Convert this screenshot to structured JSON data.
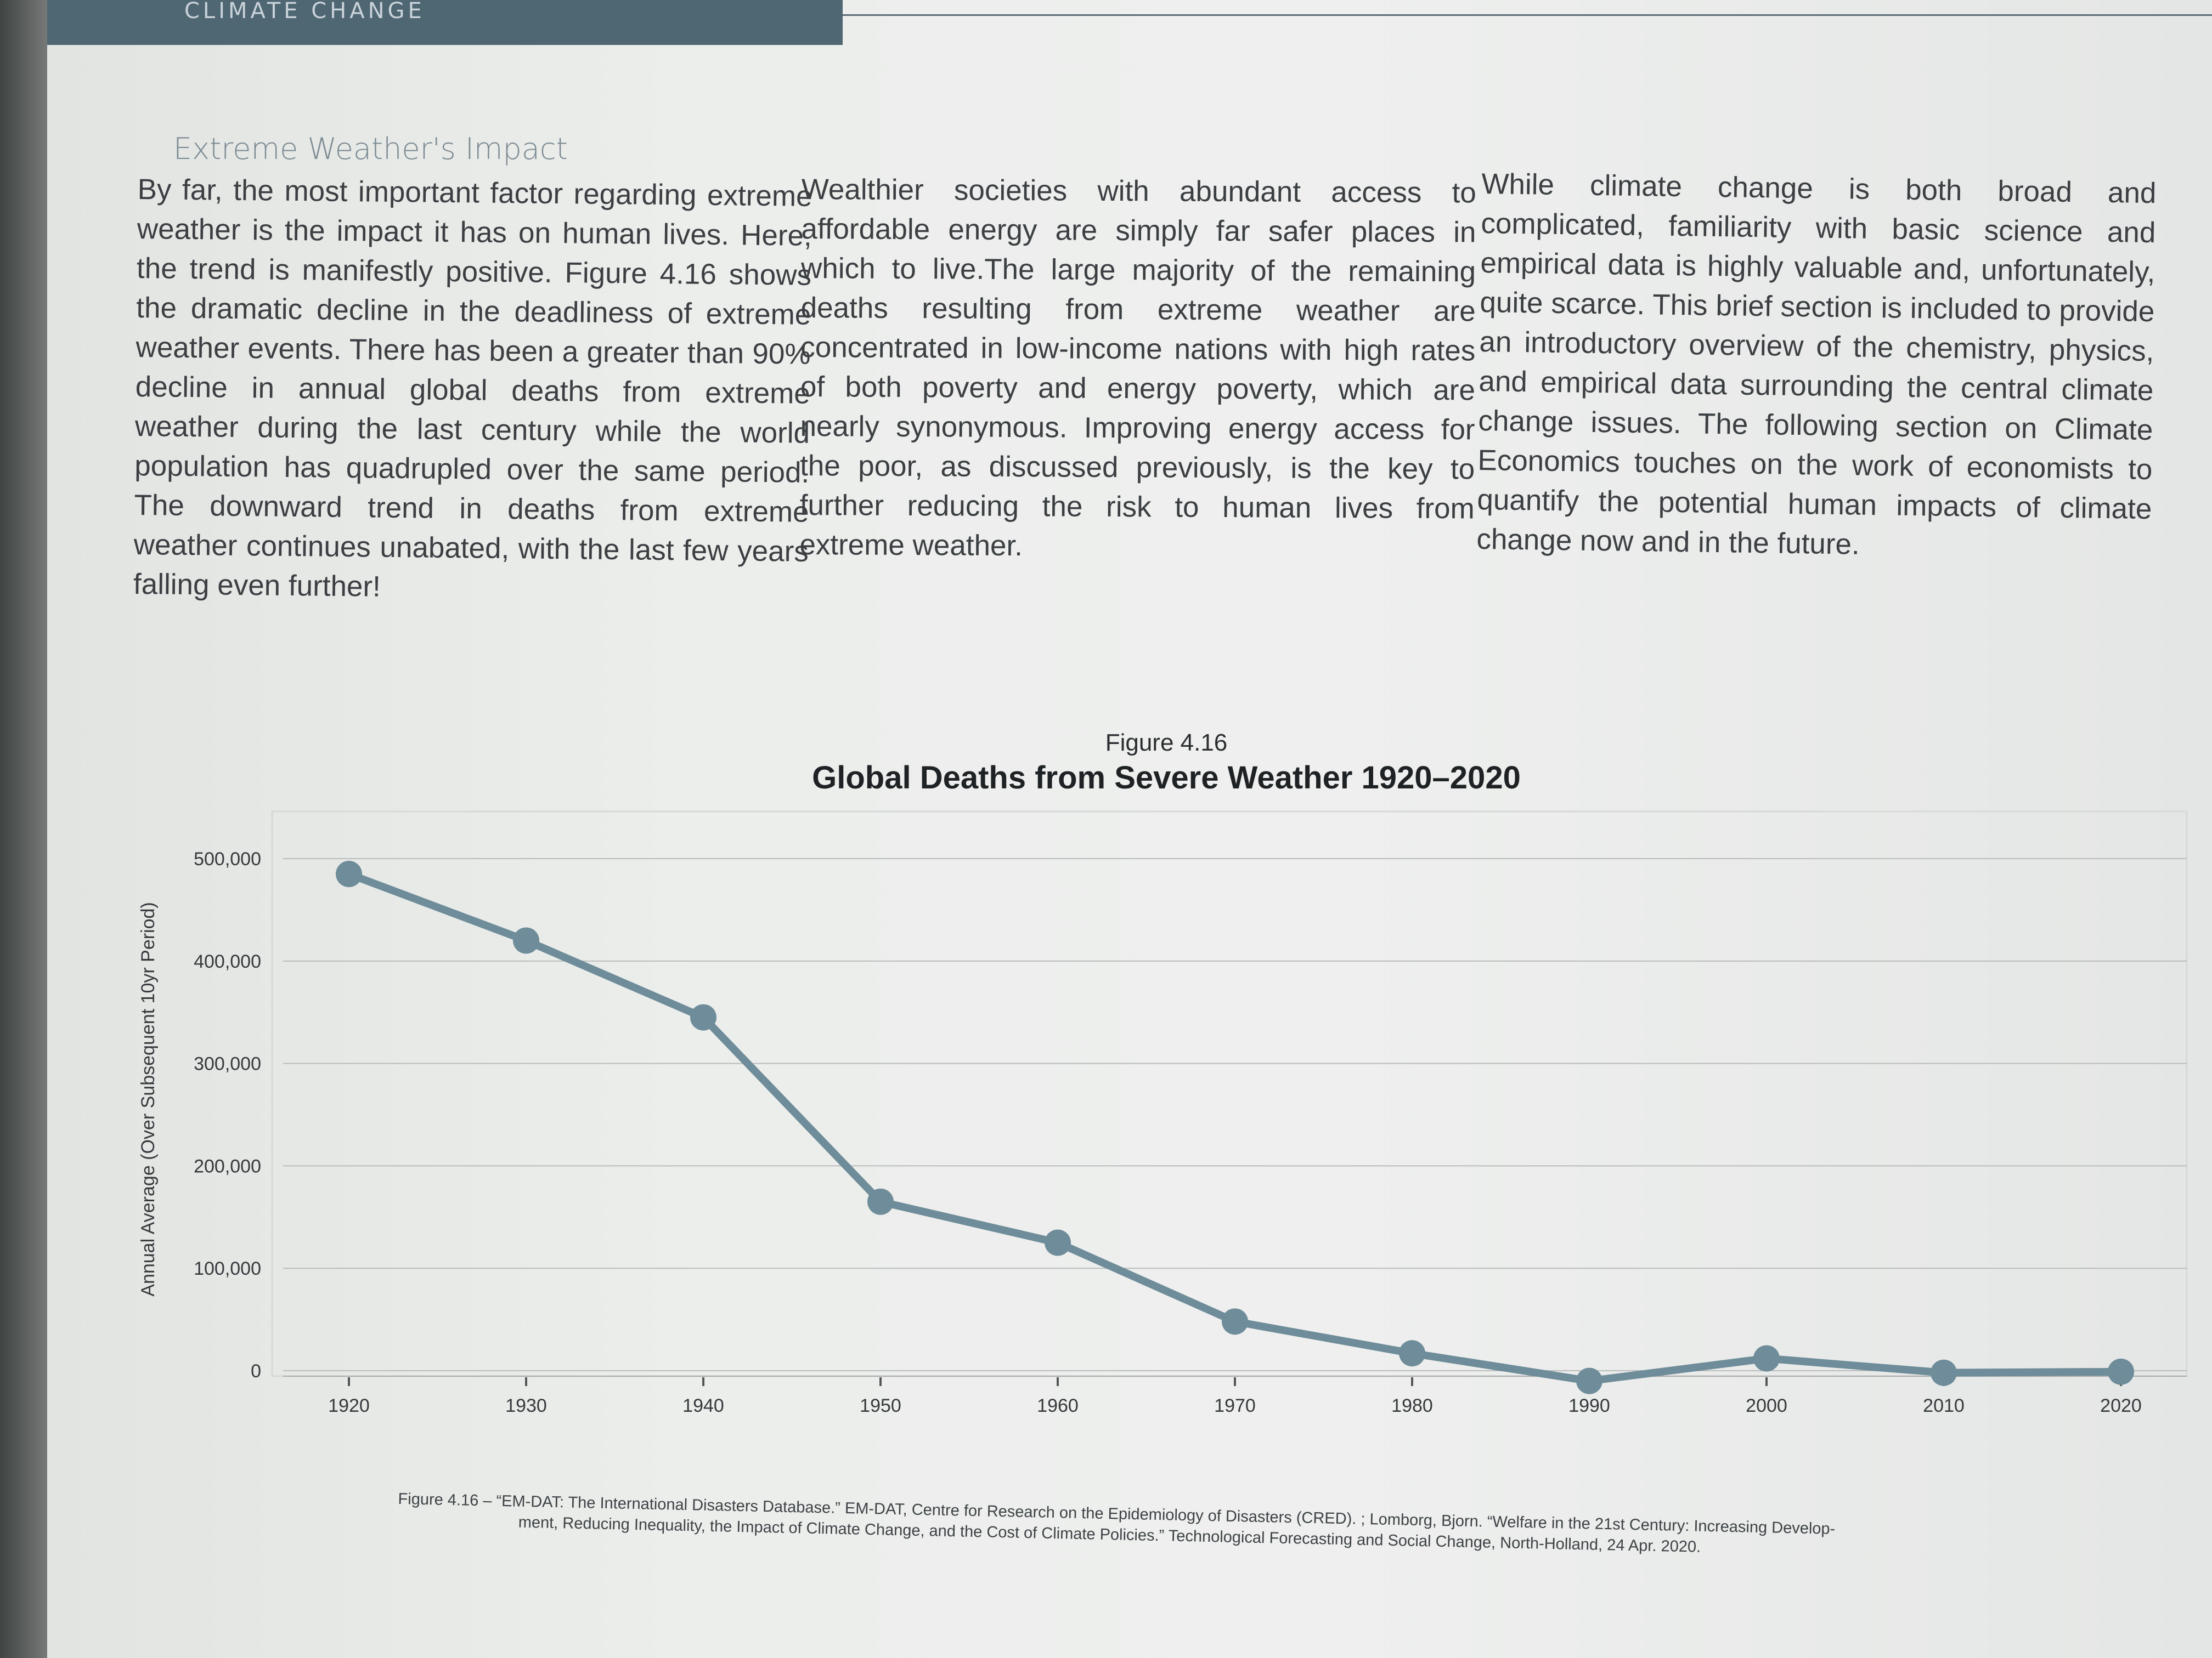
{
  "header": {
    "section_label": "CLIMATE CHANGE"
  },
  "article": {
    "heading": "Extreme Weather's Impact",
    "columns": [
      "By far, the most important factor regarding extreme weather is the impact it has on human lives. Here, the trend is manifestly positive. Figure 4.16 shows the dramatic decline in the deadliness of extreme weather events. There has been a greater than 90% decline in annual global deaths from extreme weather during the last century while the world population has quadrupled over the same period. The downward trend in deaths from extreme weather continues unabated, with the last few years falling even further!",
      "Wealthier societies with abundant access to affordable energy are simply far safer places in which to live.The large majority of the remaining deaths resulting from extreme weather are concentrated in low-income nations with high rates of both poverty and energy poverty, which are nearly synonymous. Improving energy access for the poor, as discussed previously, is the key to further reducing the risk to human lives from extreme weather.",
      "While climate change is both broad and complicated, familiarity with basic science and empirical data is highly valuable and, unfortunately, quite scarce. This brief section is included to provide an introductory overview of the chemistry, physics, and empirical data surrounding the central climate change issues. The following section on Climate Economics touches on the work of economists to quantify the potential human impacts of climate change now and in the future."
    ]
  },
  "figure": {
    "label": "Figure 4.16",
    "caption_line1": "Figure 4.16 – “EM-DAT: The International Disasters Database.” EM-DAT, Centre for Research on the Epidemiology of Disasters (CRED). ; Lomborg, Bjorn. “Welfare in the 21st Century: Increasing Develop-",
    "caption_line2": "ment, Reducing Inequality, the Impact of Climate Change, and the Cost of Climate Policies.” Technological Forecasting and Social Change, North-Holland, 24 Apr. 2020."
  },
  "chart_data": {
    "type": "line",
    "title": "Global Deaths from Severe Weather 1920–2020",
    "xlabel": "",
    "ylabel": "Annual Average (Over Subsequent 10yr Period)",
    "x": [
      1920,
      1930,
      1940,
      1950,
      1960,
      1970,
      1980,
      1990,
      2000,
      2010,
      2020
    ],
    "series": [
      {
        "values": [
          485000,
          420000,
          345000,
          165000,
          125000,
          48000,
          17000,
          -10000,
          12000,
          -2000,
          -1000
        ]
      }
    ],
    "y_ticks": [
      0,
      100000,
      200000,
      300000,
      400000,
      500000
    ],
    "y_tick_labels": [
      "0",
      "100,000",
      "200,000",
      "300,000",
      "400,000",
      "500,000"
    ],
    "x_tick_labels": [
      "1920",
      "1930",
      "1940",
      "1950",
      "1960",
      "1970",
      "1980",
      "1990",
      "2000",
      "2010",
      "2020"
    ],
    "ylim": [
      0,
      530000
    ],
    "grid": true,
    "line_color": "#6e8c99"
  }
}
